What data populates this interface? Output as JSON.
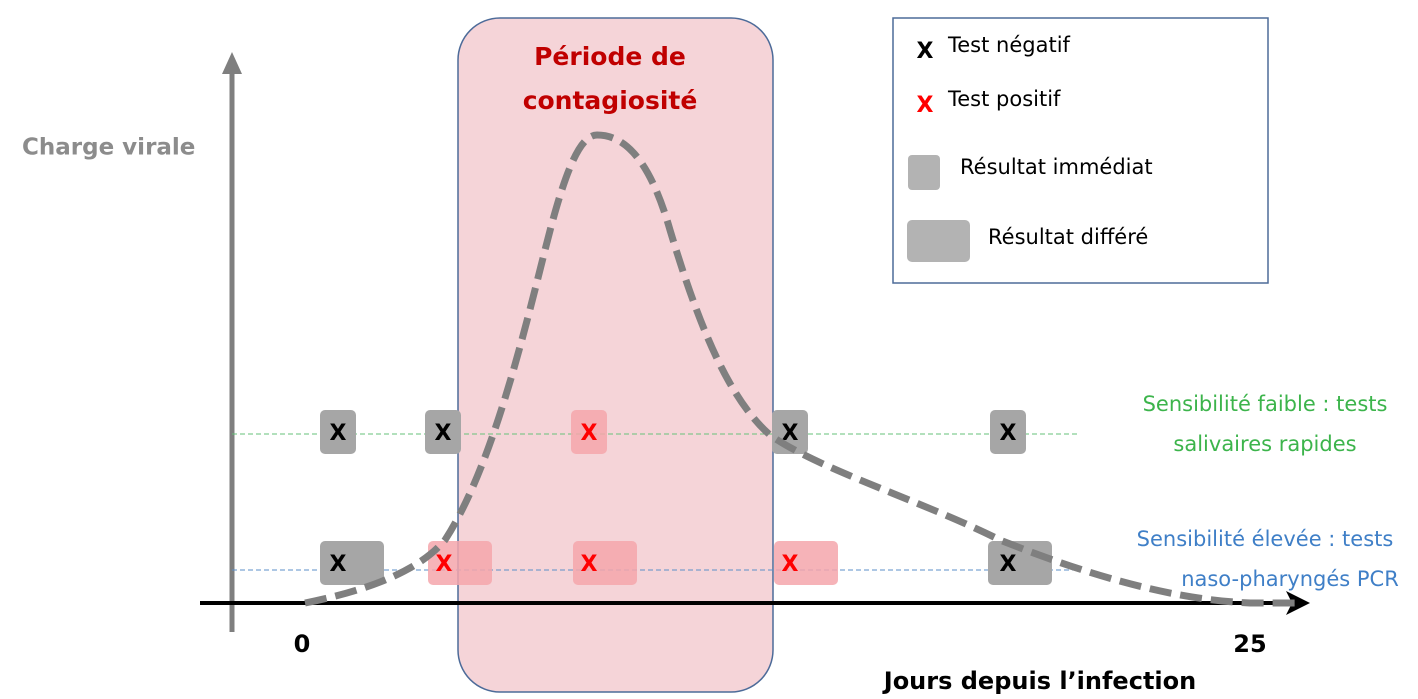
{
  "title": {
    "lines": [
      "Période de",
      "contagiosité"
    ]
  },
  "y_axis_label": "Charge virale",
  "x_axis": {
    "label": "Jours depuis l’infection",
    "start": "0",
    "end": "25"
  },
  "legend": {
    "negative": {
      "mark": "X",
      "label": "Test négatif"
    },
    "positive": {
      "mark": "X",
      "label": "Test positif"
    },
    "immediate": "Résultat immédiat",
    "deferred": "Résultat différé"
  },
  "rows": [
    {
      "label_lines": [
        "Sensibilité faible : tests",
        "salivaires rapides"
      ],
      "tests": [
        {
          "mark": "X",
          "positive": false
        },
        {
          "mark": "X",
          "positive": false
        },
        {
          "mark": "X",
          "positive": true
        },
        {
          "mark": "X",
          "positive": false
        },
        {
          "mark": "X",
          "positive": false
        }
      ]
    },
    {
      "label_lines": [
        "Sensibilité élevée : tests",
        "naso-pharyngés PCR"
      ],
      "tests": [
        {
          "mark": "X",
          "positive": false
        },
        {
          "mark": "X",
          "positive": true
        },
        {
          "mark": "X",
          "positive": true
        },
        {
          "mark": "X",
          "positive": true
        },
        {
          "mark": "X",
          "positive": false
        }
      ]
    }
  ]
}
